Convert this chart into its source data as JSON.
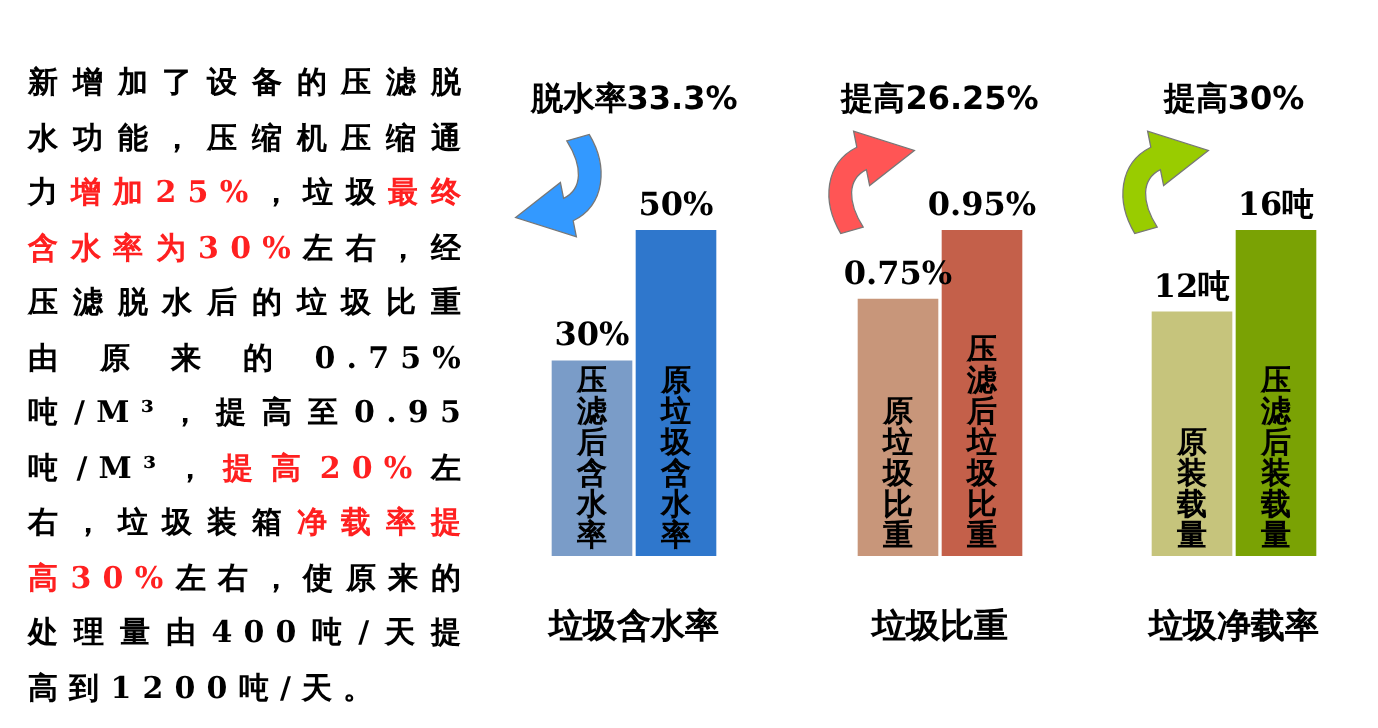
{
  "chart_data": [
    {
      "type": "other",
      "annotations": [
        "新增加了设备的压滤脱水功能，压缩机压缩通力",
        "增加25%",
        "，垃圾",
        "最终含水率为30%",
        "左右，经压滤脱水后的垃圾比重由原来的0.75%吨/M³，提高至0.95吨/M³，",
        "提高20%",
        "左右，垃圾装箱",
        "净载率提高30%",
        "左右，使原来的处理量由400吨/天提高到1200吨/天。"
      ]
    },
    {
      "type": "bar",
      "title": "脱水率33.3%",
      "xlabel": "垃圾含水率",
      "categories": [
        "压滤后含水率",
        "原垃圾含水率"
      ],
      "values": [
        30,
        50
      ],
      "colors": [
        "#7a9cc8",
        "#2f77cc"
      ],
      "value_labels": [
        "30%",
        "50%"
      ],
      "tick_labels": "x"
    },
    {
      "type": "bar",
      "title": "提高26.25%",
      "xlabel": "垃圾比重",
      "categories": [
        "原垃圾比重",
        "压滤后垃圾比重"
      ],
      "values": [
        0.75,
        0.95
      ],
      "colors": [
        "#c8967a",
        "#c4604a"
      ],
      "value_labels": [
        "0.75%",
        "0.95%"
      ],
      "tick_labels": "x"
    },
    {
      "type": "bar",
      "title": "提高30%",
      "xlabel": "垃圾净载率",
      "categories": [
        "原装载量",
        "压滤后装载量"
      ],
      "values": [
        12,
        16
      ],
      "colors": [
        "#c6c47c",
        "#7aa204"
      ],
      "value_labels": [
        "12吨",
        "16吨"
      ],
      "tick_labels": "x"
    }
  ]
}
